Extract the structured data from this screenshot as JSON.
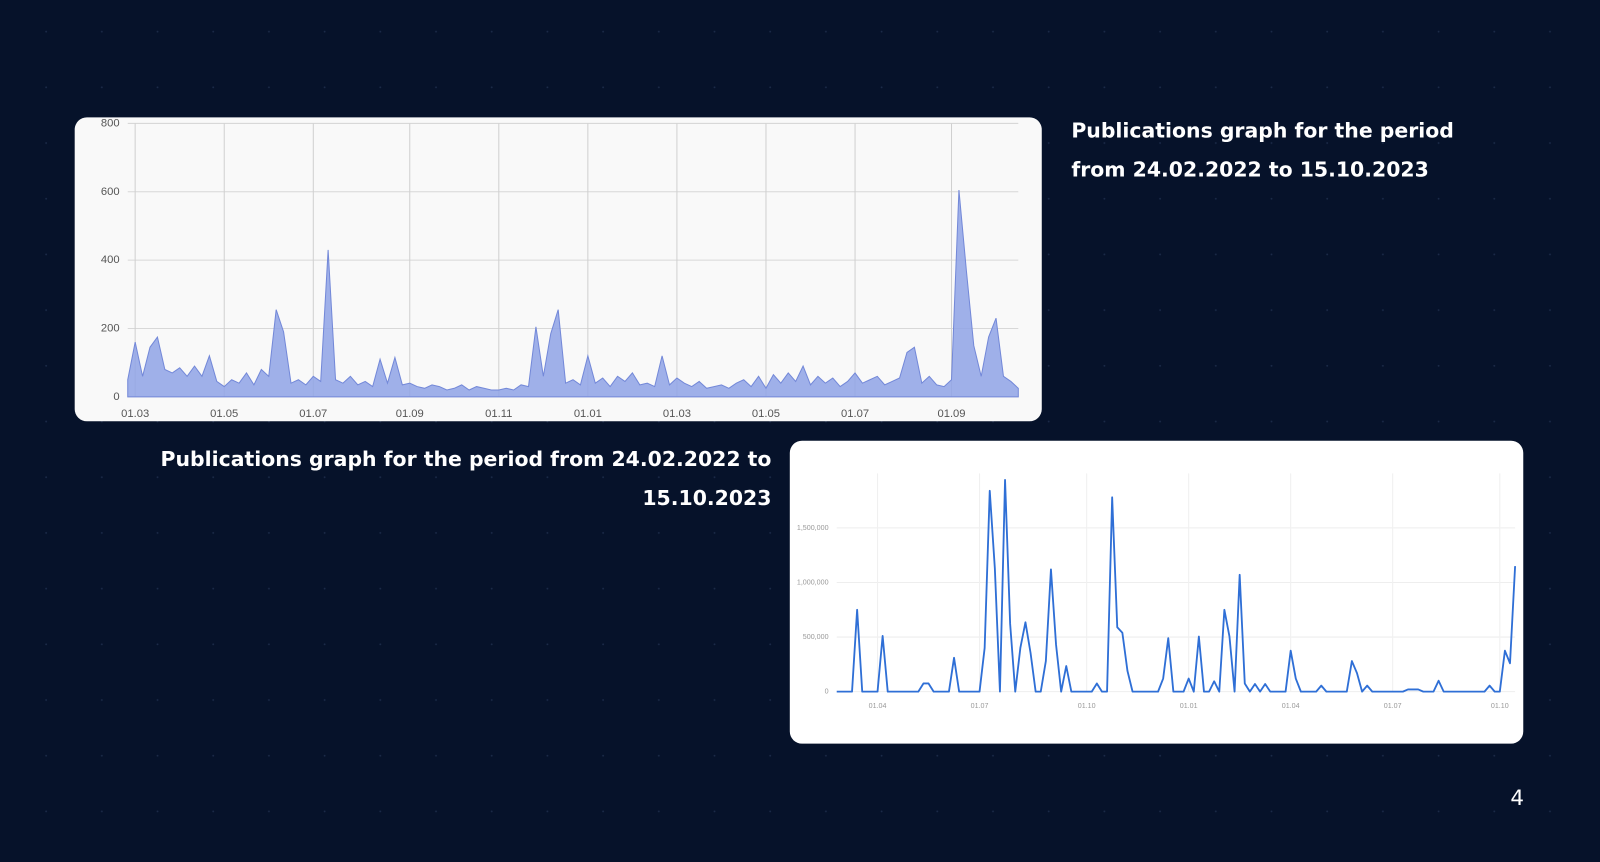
{
  "chart_data": [
    {
      "type": "area",
      "title": "Publications graph for the period from 24.02.2022 to 15.10.2023",
      "categories": [
        null,
        "01.03",
        null,
        null,
        null,
        null,
        null,
        null,
        null,
        null,
        null,
        null,
        null,
        "01.05",
        null,
        null,
        null,
        null,
        null,
        null,
        null,
        null,
        null,
        null,
        null,
        "01.07",
        null,
        null,
        null,
        null,
        null,
        null,
        null,
        null,
        null,
        null,
        null,
        null,
        "01.09",
        null,
        null,
        null,
        null,
        null,
        null,
        null,
        null,
        null,
        null,
        null,
        "01.11",
        null,
        null,
        null,
        null,
        null,
        null,
        null,
        null,
        null,
        null,
        null,
        "01.01",
        null,
        null,
        null,
        null,
        null,
        null,
        null,
        null,
        null,
        null,
        null,
        "01.03",
        null,
        null,
        null,
        null,
        null,
        null,
        null,
        null,
        null,
        null,
        null,
        "01.05",
        null,
        null,
        null,
        null,
        null,
        null,
        null,
        null,
        null,
        null,
        null,
        "01.07",
        null,
        null,
        null,
        null,
        null,
        null,
        null,
        null,
        null,
        null,
        null,
        null,
        "01.09",
        null,
        null,
        null,
        null,
        null,
        null,
        null,
        null,
        null
      ],
      "values": [
        50,
        160,
        60,
        145,
        175,
        80,
        70,
        85,
        60,
        90,
        60,
        120,
        45,
        30,
        50,
        40,
        70,
        35,
        80,
        60,
        255,
        190,
        40,
        50,
        35,
        60,
        45,
        430,
        50,
        40,
        60,
        35,
        45,
        30,
        110,
        40,
        115,
        35,
        40,
        30,
        25,
        35,
        30,
        20,
        25,
        35,
        20,
        30,
        25,
        20,
        20,
        25,
        20,
        35,
        30,
        205,
        60,
        185,
        255,
        40,
        50,
        35,
        120,
        40,
        55,
        30,
        60,
        45,
        70,
        35,
        40,
        30,
        120,
        35,
        55,
        40,
        30,
        45,
        25,
        30,
        35,
        25,
        40,
        50,
        30,
        60,
        25,
        65,
        40,
        70,
        45,
        90,
        35,
        60,
        40,
        55,
        30,
        45,
        70,
        40,
        50,
        60,
        35,
        45,
        55,
        130,
        145,
        40,
        60,
        35,
        30,
        50,
        605,
        370,
        150,
        60,
        175,
        230,
        60,
        45,
        25
      ],
      "color": "#8fa3e6",
      "ylim": [
        0,
        800
      ],
      "yticks": [
        0,
        200,
        400,
        600,
        800
      ],
      "grid": true
    },
    {
      "type": "line",
      "title": "Publications graph for the period from 24.02.2022 to 15.10.2023",
      "categories": [
        null,
        null,
        null,
        null,
        null,
        null,
        null,
        null,
        "01.04",
        null,
        null,
        null,
        null,
        null,
        null,
        null,
        null,
        null,
        null,
        null,
        null,
        null,
        null,
        null,
        null,
        null,
        null,
        null,
        "01.07",
        null,
        null,
        null,
        null,
        null,
        null,
        null,
        null,
        null,
        null,
        null,
        null,
        null,
        null,
        null,
        null,
        null,
        null,
        null,
        null,
        "01.10",
        null,
        null,
        null,
        null,
        null,
        null,
        null,
        null,
        null,
        null,
        null,
        null,
        null,
        null,
        null,
        null,
        null,
        null,
        null,
        "01.01",
        null,
        null,
        null,
        null,
        null,
        null,
        null,
        null,
        null,
        null,
        null,
        null,
        null,
        null,
        null,
        null,
        null,
        null,
        null,
        "01.04",
        null,
        null,
        null,
        null,
        null,
        null,
        null,
        null,
        null,
        null,
        null,
        null,
        null,
        null,
        null,
        null,
        null,
        null,
        null,
        "01.07",
        null,
        null,
        null,
        null,
        null,
        null,
        null,
        null,
        null,
        null,
        null,
        null,
        null,
        null,
        null,
        null,
        null,
        null,
        null,
        null,
        "01.10",
        null,
        null,
        null
      ],
      "values": [
        0,
        0,
        0,
        0,
        750000,
        0,
        0,
        0,
        0,
        510000,
        0,
        0,
        0,
        0,
        0,
        0,
        0,
        75000,
        75000,
        0,
        0,
        0,
        0,
        310000,
        0,
        0,
        0,
        0,
        0,
        400000,
        1840000,
        1130000,
        0,
        1940000,
        620000,
        0,
        400000,
        635000,
        355000,
        0,
        0,
        280000,
        1120000,
        430000,
        0,
        235000,
        0,
        0,
        0,
        0,
        0,
        75000,
        0,
        0,
        1780000,
        590000,
        540000,
        190000,
        0,
        0,
        0,
        0,
        0,
        0,
        120000,
        490000,
        0,
        0,
        0,
        120000,
        0,
        505000,
        0,
        0,
        95000,
        0,
        750000,
        505000,
        0,
        1070000,
        75000,
        0,
        70000,
        0,
        70000,
        0,
        0,
        0,
        0,
        375000,
        120000,
        0,
        0,
        0,
        0,
        55000,
        0,
        0,
        0,
        0,
        0,
        280000,
        170000,
        0,
        55000,
        0,
        0,
        0,
        0,
        0,
        0,
        0,
        20000,
        20000,
        20000,
        0,
        0,
        0,
        100000,
        0,
        0,
        0,
        0,
        0,
        0,
        0,
        0,
        0,
        55000,
        0,
        0,
        375000,
        260000,
        1150000
      ],
      "color": "#2f6fd6",
      "ylim": [
        0,
        2000000
      ],
      "yticks": [
        0,
        {
          "value": 500000,
          "label": "500,000"
        },
        {
          "value": 1000000,
          "label": "1,000,000"
        },
        {
          "value": 1500000,
          "label": "1,500,000"
        }
      ],
      "grid": true
    }
  ],
  "page_number": "4"
}
